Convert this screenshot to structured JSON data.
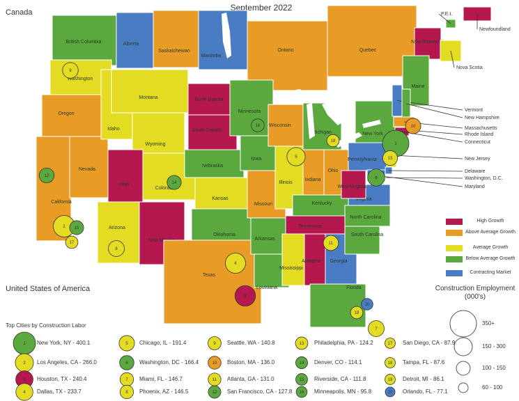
{
  "title": "September 2022",
  "country_labels": [
    "Canada",
    "United States of America"
  ],
  "growth_classes": [
    {
      "label": "High Growth",
      "color": "#b5174f"
    },
    {
      "label": "Above Average Growth",
      "color": "#e89b25"
    },
    {
      "label": "Average Growth",
      "color": "#e3dc22"
    },
    {
      "label": "Below Average Growth",
      "color": "#5ba83e"
    },
    {
      "label": "Contracting Market",
      "color": "#4a7cc4"
    }
  ],
  "regions": [
    {
      "label": "British Columbia",
      "class": 3
    },
    {
      "label": "Alberta",
      "class": 4
    },
    {
      "label": "Saskatchewan",
      "class": 1
    },
    {
      "label": "Manitoba",
      "class": 4
    },
    {
      "label": "Ontario",
      "class": 1
    },
    {
      "label": "Quebec",
      "class": 1
    },
    {
      "label": "New Brunswick",
      "class": 0
    },
    {
      "label": "Nova Scotia",
      "class": 2
    },
    {
      "label": "P.E.I.",
      "class": 3
    },
    {
      "label": "Newfoundland",
      "class": 0
    },
    {
      "label": "Washington",
      "class": 2
    },
    {
      "label": "Oregon",
      "class": 1
    },
    {
      "label": "California",
      "class": 1
    },
    {
      "label": "Nevada",
      "class": 1
    },
    {
      "label": "Idaho",
      "class": 2
    },
    {
      "label": "Montana",
      "class": 2
    },
    {
      "label": "Wyoming",
      "class": 2
    },
    {
      "label": "Utah",
      "class": 0
    },
    {
      "label": "Colorado",
      "class": 2
    },
    {
      "label": "Arizona",
      "class": 2
    },
    {
      "label": "New Mexico",
      "class": 0
    },
    {
      "label": "North Dakota",
      "class": 0
    },
    {
      "label": "South Dakota",
      "class": 0
    },
    {
      "label": "Nebraska",
      "class": 3
    },
    {
      "label": "Kansas",
      "class": 2
    },
    {
      "label": "Oklahoma",
      "class": 3
    },
    {
      "label": "Texas",
      "class": 1
    },
    {
      "label": "Minnesota",
      "class": 3
    },
    {
      "label": "Iowa",
      "class": 3
    },
    {
      "label": "Missouri",
      "class": 1
    },
    {
      "label": "Arkansas",
      "class": 3
    },
    {
      "label": "Louisiana",
      "class": 3
    },
    {
      "label": "Wisconsin",
      "class": 1
    },
    {
      "label": "Illinois",
      "class": 2
    },
    {
      "label": "Michigan",
      "class": 3
    },
    {
      "label": "Indiana",
      "class": 1
    },
    {
      "label": "Ohio",
      "class": 1
    },
    {
      "label": "Kentucky",
      "class": 3
    },
    {
      "label": "Tennessee",
      "class": 0
    },
    {
      "label": "Mississippi",
      "class": 2
    },
    {
      "label": "Alabama",
      "class": 0
    },
    {
      "label": "Georgia",
      "class": 4
    },
    {
      "label": "Florida",
      "class": 3
    },
    {
      "label": "South Carolina",
      "class": 3
    },
    {
      "label": "North Carolina",
      "class": 3
    },
    {
      "label": "Virginia",
      "class": 4
    },
    {
      "label": "West Virginia",
      "class": 0
    },
    {
      "label": "Pennsylvania",
      "class": 4
    },
    {
      "label": "New York",
      "class": 3
    },
    {
      "label": "Maine",
      "class": 3
    },
    {
      "label": "Vermont",
      "class": 4
    },
    {
      "label": "New Hampshire",
      "class": 3
    },
    {
      "label": "Massachusetts",
      "class": 1
    },
    {
      "label": "Rhode Island",
      "class": 0
    },
    {
      "label": "Connecticut",
      "class": 0
    },
    {
      "label": "New Jersey",
      "class": 2
    },
    {
      "label": "Delaware",
      "class": 4
    },
    {
      "label": "Washington, D.C.",
      "class": 4
    },
    {
      "label": "Maryland",
      "class": 4
    }
  ],
  "cities_title": "Top Cities by Construction Labor",
  "cities": [
    {
      "rank": "1",
      "label": "New York, NY - 400.1",
      "value": 400.1,
      "class": 3
    },
    {
      "rank": "2",
      "label": "Los Angeles, CA - 266.0",
      "value": 266.0,
      "class": 2
    },
    {
      "rank": "3",
      "label": "Houston, TX - 240.4",
      "value": 240.4,
      "class": 0
    },
    {
      "rank": "4",
      "label": "Dallas, TX - 233.7",
      "value": 233.7,
      "class": 2
    },
    {
      "rank": "5",
      "label": "Chicago, IL - 191.4",
      "value": 191.4,
      "class": 2
    },
    {
      "rank": "6",
      "label": "Washington, DC - 166.4",
      "value": 166.4,
      "class": 3
    },
    {
      "rank": "7",
      "label": "Miami, FL - 146.7",
      "value": 146.7,
      "class": 2
    },
    {
      "rank": "8",
      "label": "Phoenix, AZ - 146.5",
      "value": 146.5,
      "class": 2
    },
    {
      "rank": "9",
      "label": "Seattle, WA - 140.8",
      "value": 140.8,
      "class": 2
    },
    {
      "rank": "10",
      "label": "Boston, MA - 136.0",
      "value": 136.0,
      "class": 1
    },
    {
      "rank": "11",
      "label": "Atlanta, GA - 131.0",
      "value": 131.0,
      "class": 2
    },
    {
      "rank": "12",
      "label": "San Francisco, CA - 127.8",
      "value": 127.8,
      "class": 3
    },
    {
      "rank": "13",
      "label": "Philadelphia, PA - 124.2",
      "value": 124.2,
      "class": 2
    },
    {
      "rank": "14",
      "label": "Denver, CO - 114.1",
      "value": 114.1,
      "class": 3
    },
    {
      "rank": "15",
      "label": "Riverside, CA - 111.8",
      "value": 111.8,
      "class": 3
    },
    {
      "rank": "16",
      "label": "Minneapolis, MN - 95.8",
      "value": 95.8,
      "class": 3
    },
    {
      "rank": "17",
      "label": "San Diego, CA - 87.9",
      "value": 87.9,
      "class": 2
    },
    {
      "rank": "18",
      "label": "Tampa, FL - 87.6",
      "value": 87.6,
      "class": 2
    },
    {
      "rank": "19",
      "label": "Detroit, MI - 86.1",
      "value": 86.1,
      "class": 2
    },
    {
      "rank": "20",
      "label": "Orlando, FL - 77.1",
      "value": 77.1,
      "class": 4
    }
  ],
  "size_legend": {
    "title": "Construction Employment (000's)",
    "labels": [
      "350+",
      "150 - 300",
      "100 - 150",
      "60 - 100"
    ]
  }
}
